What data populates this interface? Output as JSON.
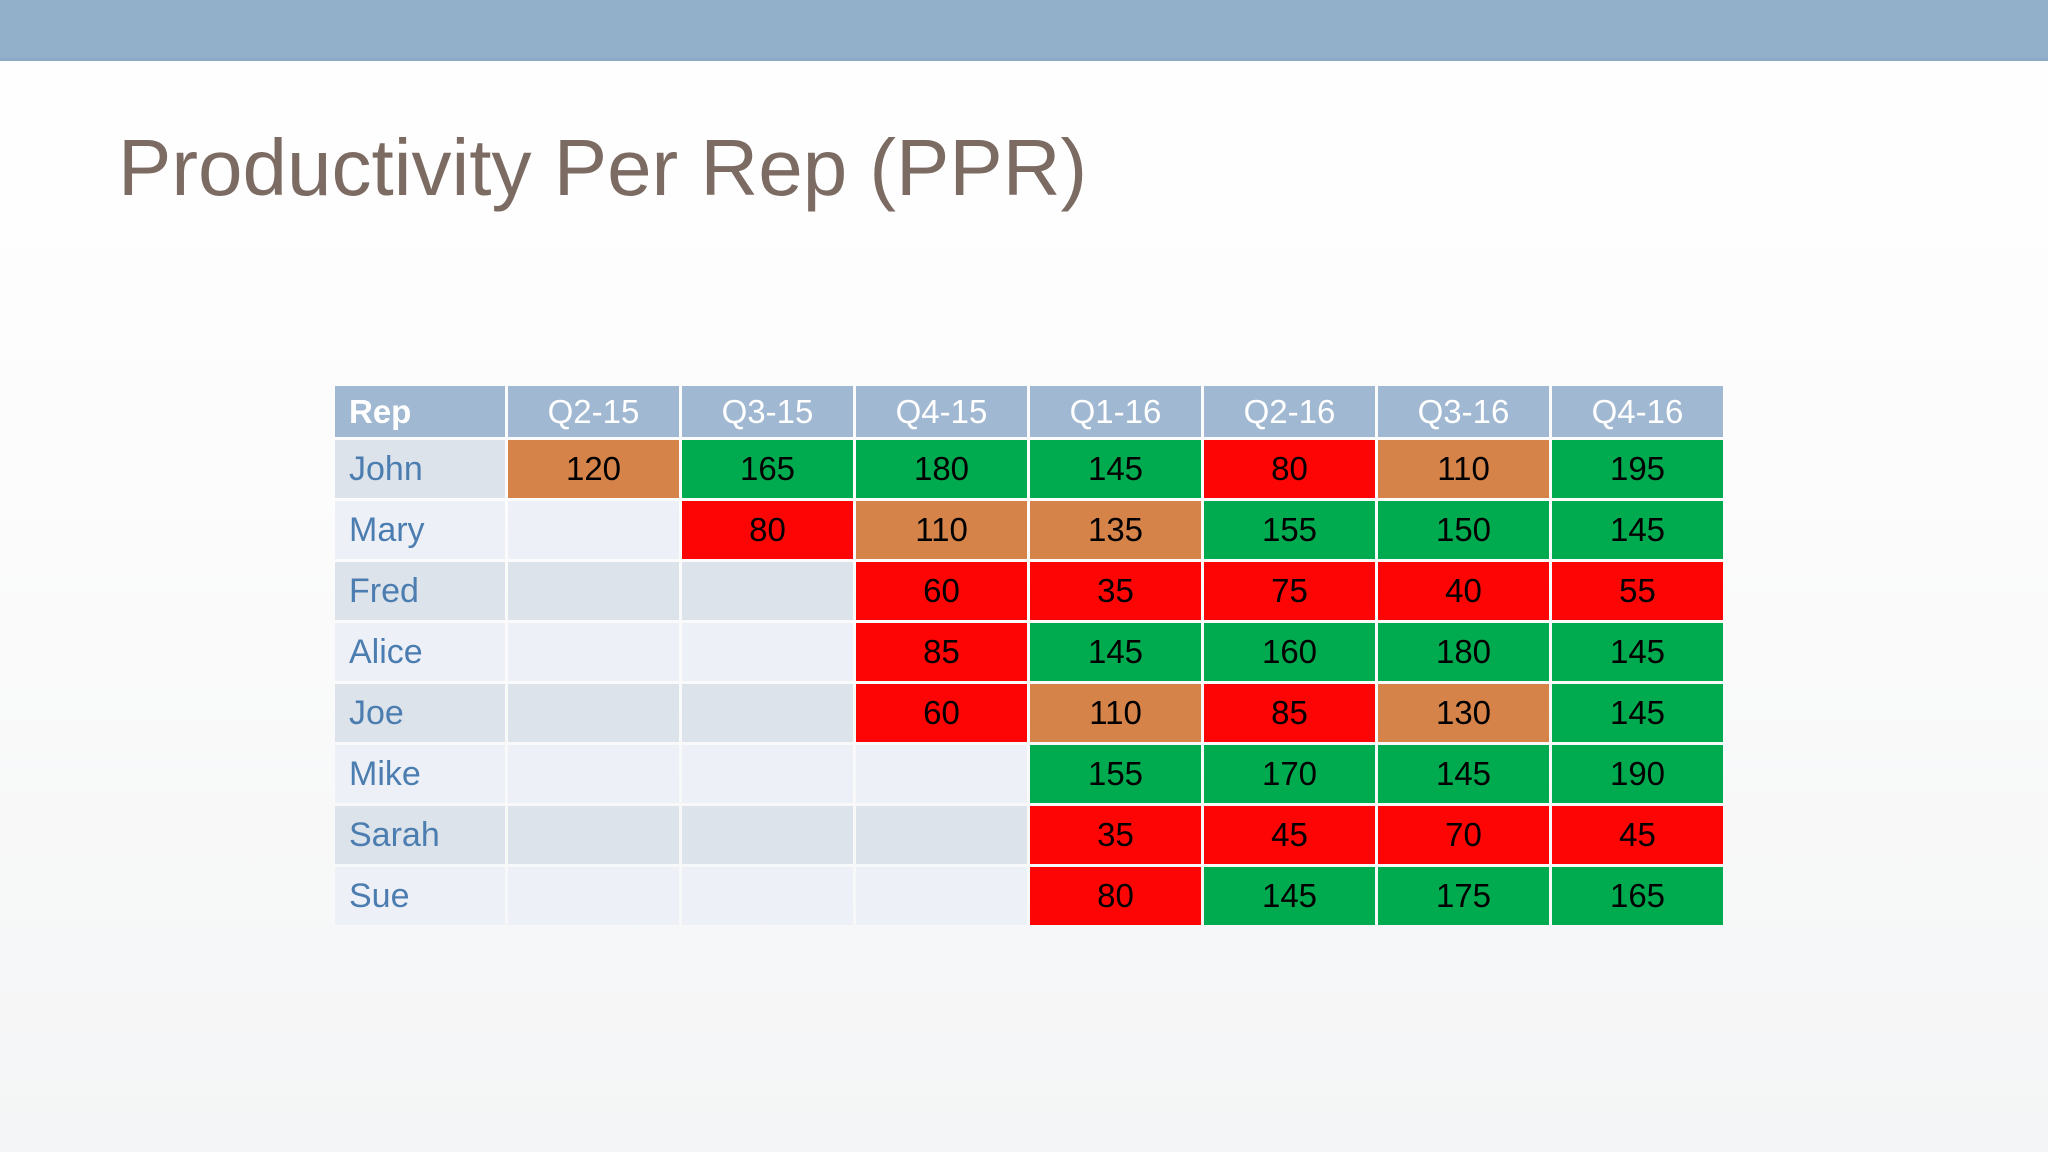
{
  "slide": {
    "title": "Productivity Per Rep (PPR)"
  },
  "colors": {
    "top-bar": "#93b0cb",
    "header-bg": "#a0b8d1",
    "header-text": "#ffffff",
    "band-dark": "#dde3ea",
    "band-light": "#edf1f7",
    "rep-text": "#4c7db0",
    "title-text": "#7c6b62",
    "value-text": "#000000",
    "green": "#00ab50",
    "red": "#fd0505",
    "orange": "#d6834a"
  },
  "table": {
    "columns": [
      "Rep",
      "Q2-15",
      "Q3-15",
      "Q4-15",
      "Q1-16",
      "Q2-16",
      "Q3-16",
      "Q4-16"
    ],
    "rows": [
      {
        "rep": "John",
        "cells": [
          {
            "v": "120",
            "c": "orange"
          },
          {
            "v": "165",
            "c": "green"
          },
          {
            "v": "180",
            "c": "green"
          },
          {
            "v": "145",
            "c": "green"
          },
          {
            "v": "80",
            "c": "red"
          },
          {
            "v": "110",
            "c": "orange"
          },
          {
            "v": "195",
            "c": "green"
          }
        ]
      },
      {
        "rep": "Mary",
        "cells": [
          {
            "v": "",
            "c": "none"
          },
          {
            "v": "80",
            "c": "red"
          },
          {
            "v": "110",
            "c": "orange"
          },
          {
            "v": "135",
            "c": "orange"
          },
          {
            "v": "155",
            "c": "green"
          },
          {
            "v": "150",
            "c": "green"
          },
          {
            "v": "145",
            "c": "green"
          }
        ]
      },
      {
        "rep": "Fred",
        "cells": [
          {
            "v": "",
            "c": "none"
          },
          {
            "v": "",
            "c": "none"
          },
          {
            "v": "60",
            "c": "red"
          },
          {
            "v": "35",
            "c": "red"
          },
          {
            "v": "75",
            "c": "red"
          },
          {
            "v": "40",
            "c": "red"
          },
          {
            "v": "55",
            "c": "red"
          }
        ]
      },
      {
        "rep": "Alice",
        "cells": [
          {
            "v": "",
            "c": "none"
          },
          {
            "v": "",
            "c": "none"
          },
          {
            "v": "85",
            "c": "red"
          },
          {
            "v": "145",
            "c": "green"
          },
          {
            "v": "160",
            "c": "green"
          },
          {
            "v": "180",
            "c": "green"
          },
          {
            "v": "145",
            "c": "green"
          }
        ]
      },
      {
        "rep": "Joe",
        "cells": [
          {
            "v": "",
            "c": "none"
          },
          {
            "v": "",
            "c": "none"
          },
          {
            "v": "60",
            "c": "red"
          },
          {
            "v": "110",
            "c": "orange"
          },
          {
            "v": "85",
            "c": "red"
          },
          {
            "v": "130",
            "c": "orange"
          },
          {
            "v": "145",
            "c": "green"
          }
        ]
      },
      {
        "rep": "Mike",
        "cells": [
          {
            "v": "",
            "c": "none"
          },
          {
            "v": "",
            "c": "none"
          },
          {
            "v": "",
            "c": "none"
          },
          {
            "v": "155",
            "c": "green"
          },
          {
            "v": "170",
            "c": "green"
          },
          {
            "v": "145",
            "c": "green"
          },
          {
            "v": "190",
            "c": "green"
          }
        ]
      },
      {
        "rep": "Sarah",
        "cells": [
          {
            "v": "",
            "c": "none"
          },
          {
            "v": "",
            "c": "none"
          },
          {
            "v": "",
            "c": "none"
          },
          {
            "v": "35",
            "c": "red"
          },
          {
            "v": "45",
            "c": "red"
          },
          {
            "v": "70",
            "c": "red"
          },
          {
            "v": "45",
            "c": "red"
          }
        ]
      },
      {
        "rep": "Sue",
        "cells": [
          {
            "v": "",
            "c": "none"
          },
          {
            "v": "",
            "c": "none"
          },
          {
            "v": "",
            "c": "none"
          },
          {
            "v": "80",
            "c": "red"
          },
          {
            "v": "145",
            "c": "green"
          },
          {
            "v": "175",
            "c": "green"
          },
          {
            "v": "165",
            "c": "green"
          }
        ]
      }
    ]
  }
}
